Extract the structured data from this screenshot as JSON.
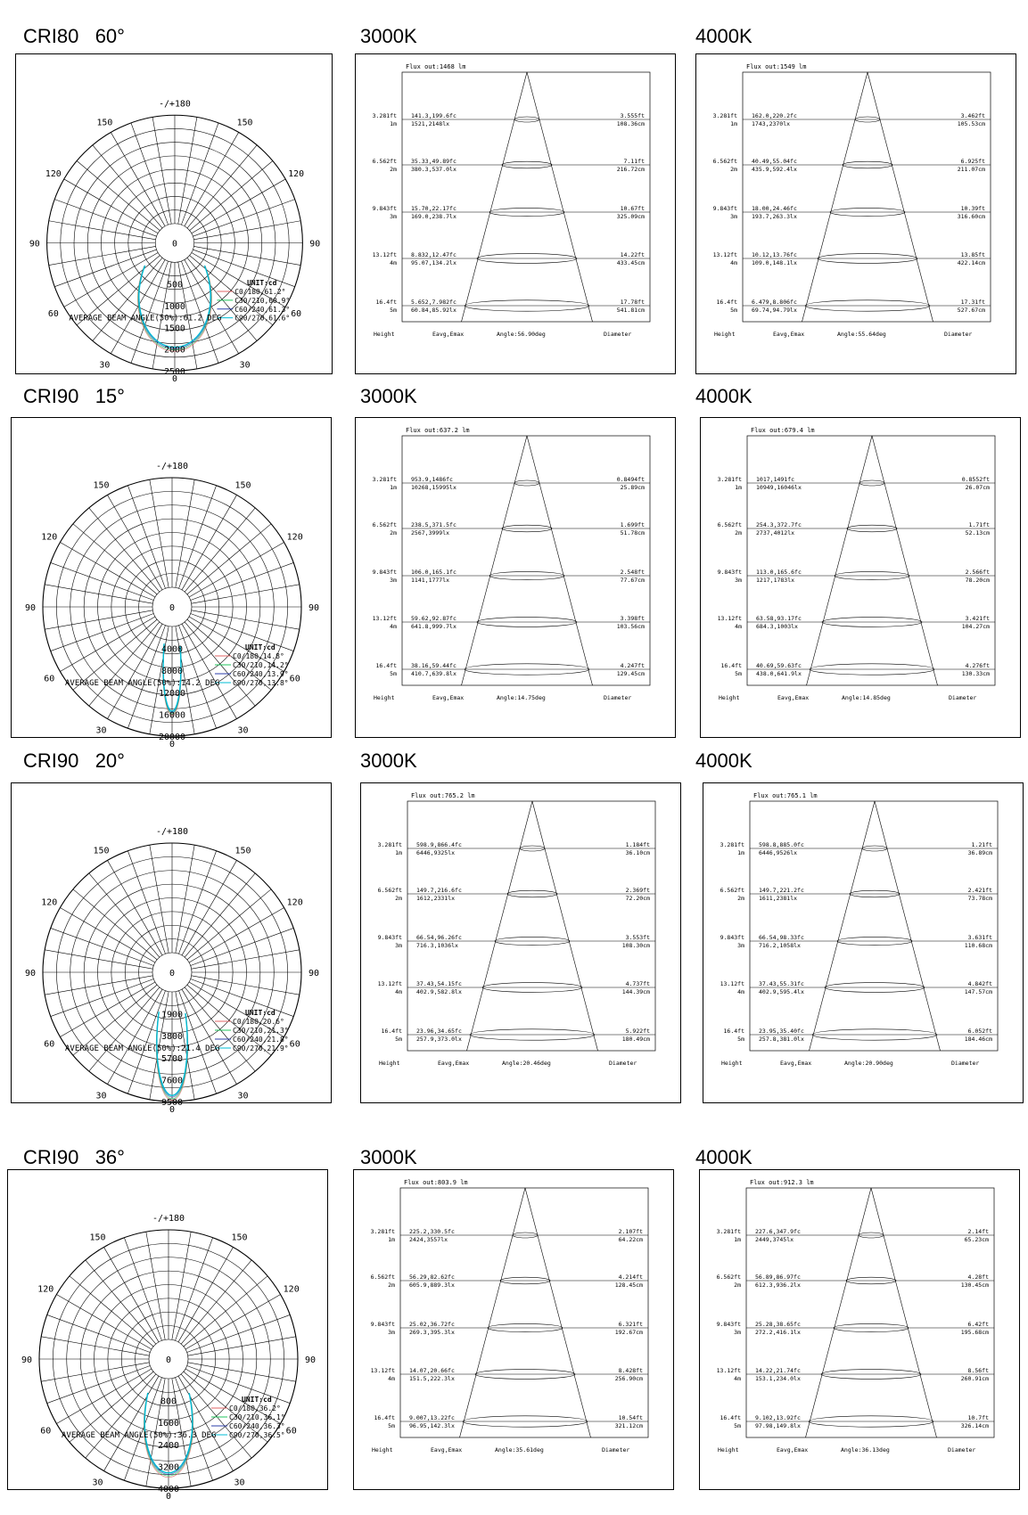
{
  "rows": [
    {
      "titles": [
        "CRI80   60°",
        "3000K",
        "4000K"
      ],
      "polar": {
        "type": "polar",
        "rings": [
          500,
          1000,
          1500,
          2000,
          2500
        ],
        "rmax": 2500,
        "inner_labels": [
          "0",
          "500",
          "1000",
          "1500",
          "2000",
          "2500"
        ],
        "unit": "UNIT:cd",
        "legend": [
          "C0/180,61.2°",
          "C30/210,60.9°",
          "C60/240,61.3°",
          "C90/270,61.6°"
        ],
        "beam_angle_label": "AVERAGE BEAM ANGLE(50%):61.2 DEG",
        "beam_angle": 61.2,
        "peak": 2050
      },
      "cones": [
        {
          "type": "table",
          "flux": "Flux out:1468 lm",
          "angle": "Angle:56.90deg",
          "rows": [
            {
              "ft": "3.281ft",
              "m": "1m",
              "fc": "141.3,199.6fc",
              "lx": "1521,2148lx",
              "dft": "3.555ft",
              "dcm": "108.36cm"
            },
            {
              "ft": "6.562ft",
              "m": "2m",
              "fc": "35.33,49.89fc",
              "lx": "380.3,537.0lx",
              "dft": "7.11ft",
              "dcm": "216.72cm"
            },
            {
              "ft": "9.843ft",
              "m": "3m",
              "fc": "15.70,22.17fc",
              "lx": "169.0,238.7lx",
              "dft": "10.67ft",
              "dcm": "325.09cm"
            },
            {
              "ft": "13.12ft",
              "m": "4m",
              "fc": "8.832,12.47fc",
              "lx": "95.07,134.2lx",
              "dft": "14.22ft",
              "dcm": "433.45cm"
            },
            {
              "ft": "16.4ft",
              "m": "5m",
              "fc": "5.652,7.982fc",
              "lx": "60.84,85.92lx",
              "dft": "17.78ft",
              "dcm": "541.81cm"
            }
          ]
        },
        {
          "type": "table",
          "flux": "Flux out:1549 lm",
          "angle": "Angle:55.64deg",
          "rows": [
            {
              "ft": "3.281ft",
              "m": "1m",
              "fc": "162.0,220.2fc",
              "lx": "1743,2370lx",
              "dft": "3.462ft",
              "dcm": "105.53cm"
            },
            {
              "ft": "6.562ft",
              "m": "2m",
              "fc": "40.49,55.04fc",
              "lx": "435.9,592.4lx",
              "dft": "6.925ft",
              "dcm": "211.07cm"
            },
            {
              "ft": "9.843ft",
              "m": "3m",
              "fc": "18.00,24.46fc",
              "lx": "193.7,263.3lx",
              "dft": "10.39ft",
              "dcm": "316.60cm"
            },
            {
              "ft": "13.12ft",
              "m": "4m",
              "fc": "10.12,13.76fc",
              "lx": "109.0,148.1lx",
              "dft": "13.85ft",
              "dcm": "422.14cm"
            },
            {
              "ft": "16.4ft",
              "m": "5m",
              "fc": "6.479,8.806fc",
              "lx": "69.74,94.79lx",
              "dft": "17.31ft",
              "dcm": "527.67cm"
            }
          ]
        }
      ]
    },
    {
      "titles": [
        "CRI90   15°",
        "3000K",
        "4000K"
      ],
      "polar": {
        "type": "polar",
        "rings": [
          4000,
          8000,
          12000,
          16000,
          20000
        ],
        "rmax": 20000,
        "inner_labels": [
          "0",
          "4000",
          "8000",
          "12000",
          "16000",
          "20000"
        ],
        "unit": "UNIT:cd",
        "legend": [
          "C0/180,14.8°",
          "C30/210,14.2°",
          "C60/240,13.9°",
          "C90/270,13.8°"
        ],
        "beam_angle_label": "AVERAGE BEAM ANGLE(50%):14.2 DEG",
        "beam_angle": 14.2,
        "peak": 16200
      },
      "cones": [
        {
          "type": "table",
          "flux": "Flux out:637.2 lm",
          "angle": "Angle:14.75deg",
          "rows": [
            {
              "ft": "3.281ft",
              "m": "1m",
              "fc": "953.9,1486fc",
              "lx": "10268,15995lx",
              "dft": "0.8494ft",
              "dcm": "25.89cm"
            },
            {
              "ft": "6.562ft",
              "m": "2m",
              "fc": "238.5,371.5fc",
              "lx": "2567,3999lx",
              "dft": "1.699ft",
              "dcm": "51.78cm"
            },
            {
              "ft": "9.843ft",
              "m": "3m",
              "fc": "106.0,165.1fc",
              "lx": "1141,1777lx",
              "dft": "2.548ft",
              "dcm": "77.67cm"
            },
            {
              "ft": "13.12ft",
              "m": "4m",
              "fc": "59.62,92.87fc",
              "lx": "641.8,999.7lx",
              "dft": "3.398ft",
              "dcm": "103.56cm"
            },
            {
              "ft": "16.4ft",
              "m": "5m",
              "fc": "38.16,59.44fc",
              "lx": "410.7,639.8lx",
              "dft": "4.247ft",
              "dcm": "129.45cm"
            }
          ]
        },
        {
          "type": "table",
          "flux": "Flux out:679.4 lm",
          "angle": "Angle:14.85deg",
          "rows": [
            {
              "ft": "3.281ft",
              "m": "1m",
              "fc": "1017,1491fc",
              "lx": "10949,16046lx",
              "dft": "0.8552ft",
              "dcm": "26.07cm"
            },
            {
              "ft": "6.562ft",
              "m": "2m",
              "fc": "254.3,372.7fc",
              "lx": "2737,4012lx",
              "dft": "1.71ft",
              "dcm": "52.13cm"
            },
            {
              "ft": "9.843ft",
              "m": "3m",
              "fc": "113.0,165.6fc",
              "lx": "1217,1783lx",
              "dft": "2.566ft",
              "dcm": "78.20cm"
            },
            {
              "ft": "13.12ft",
              "m": "4m",
              "fc": "63.58,93.17fc",
              "lx": "684.3,1003lx",
              "dft": "3.421ft",
              "dcm": "104.27cm"
            },
            {
              "ft": "16.4ft",
              "m": "5m",
              "fc": "40.69,59.63fc",
              "lx": "438.0,641.9lx",
              "dft": "4.276ft",
              "dcm": "130.33cm"
            }
          ]
        }
      ]
    },
    {
      "titles": [
        "CRI90   20°",
        "3000K",
        "4000K"
      ],
      "polar": {
        "type": "polar",
        "rings": [
          1900,
          3800,
          5700,
          7600,
          9500
        ],
        "rmax": 9500,
        "inner_labels": [
          "0",
          "1900",
          "3800",
          "5700",
          "7600",
          "9500"
        ],
        "unit": "UNIT:cd",
        "legend": [
          "C0/180,20.6°",
          "C30/210,21.3°",
          "C60/240,21.8°",
          "C90/270,21.9°"
        ],
        "beam_angle_label": "AVERAGE BEAM ANGLE(50%):21.4 DEG",
        "beam_angle": 21.4,
        "peak": 9400
      },
      "cones": [
        {
          "type": "table",
          "flux": "Flux out:765.2 lm",
          "angle": "Angle:20.46deg",
          "rows": [
            {
              "ft": "3.281ft",
              "m": "1m",
              "fc": "598.9,866.4fc",
              "lx": "6446,9325lx",
              "dft": "1.184ft",
              "dcm": "36.10cm"
            },
            {
              "ft": "6.562ft",
              "m": "2m",
              "fc": "149.7,216.6fc",
              "lx": "1612,2331lx",
              "dft": "2.369ft",
              "dcm": "72.20cm"
            },
            {
              "ft": "9.843ft",
              "m": "3m",
              "fc": "66.54,96.26fc",
              "lx": "716.3,1036lx",
              "dft": "3.553ft",
              "dcm": "108.30cm"
            },
            {
              "ft": "13.12ft",
              "m": "4m",
              "fc": "37.43,54.15fc",
              "lx": "402.9,582.8lx",
              "dft": "4.737ft",
              "dcm": "144.39cm"
            },
            {
              "ft": "16.4ft",
              "m": "5m",
              "fc": "23.96,34.65fc",
              "lx": "257.9,373.0lx",
              "dft": "5.922ft",
              "dcm": "180.49cm"
            }
          ]
        },
        {
          "type": "table",
          "flux": "Flux out:765.1 lm",
          "angle": "Angle:20.90deg",
          "rows": [
            {
              "ft": "3.281ft",
              "m": "1m",
              "fc": "598.8,885.0fc",
              "lx": "6446,9526lx",
              "dft": "1.21ft",
              "dcm": "36.89cm"
            },
            {
              "ft": "6.562ft",
              "m": "2m",
              "fc": "149.7,221.2fc",
              "lx": "1611,2381lx",
              "dft": "2.421ft",
              "dcm": "73.78cm"
            },
            {
              "ft": "9.843ft",
              "m": "3m",
              "fc": "66.54,98.33fc",
              "lx": "716.2,1058lx",
              "dft": "3.631ft",
              "dcm": "110.68cm"
            },
            {
              "ft": "13.12ft",
              "m": "4m",
              "fc": "37.43,55.31fc",
              "lx": "402.9,595.4lx",
              "dft": "4.842ft",
              "dcm": "147.57cm"
            },
            {
              "ft": "16.4ft",
              "m": "5m",
              "fc": "23.95,35.40fc",
              "lx": "257.8,381.0lx",
              "dft": "6.052ft",
              "dcm": "184.46cm"
            }
          ]
        }
      ]
    },
    {
      "titles": [
        "CRI90   36°",
        "3000K",
        "4000K"
      ],
      "polar": {
        "type": "polar",
        "rings": [
          800,
          1600,
          2400,
          3200,
          4000
        ],
        "rmax": 4000,
        "inner_labels": [
          "0",
          "800",
          "1600",
          "2400",
          "3200",
          "4000"
        ],
        "unit": "UNIT:cd",
        "legend": [
          "C0/180,36.2°",
          "C30/210,36.1°",
          "C60/240,36.3°",
          "C90/270,36.5°"
        ],
        "beam_angle_label": "AVERAGE BEAM ANGLE(50%):36.3 DEG",
        "beam_angle": 36.3,
        "peak": 3600
      },
      "cones": [
        {
          "type": "table",
          "flux": "Flux out:803.9 lm",
          "angle": "Angle:35.61deg",
          "rows": [
            {
              "ft": "3.281ft",
              "m": "1m",
              "fc": "225.2,330.5fc",
              "lx": "2424,3557lx",
              "dft": "2.107ft",
              "dcm": "64.22cm"
            },
            {
              "ft": "6.562ft",
              "m": "2m",
              "fc": "56.29,82.62fc",
              "lx": "605.9,889.3lx",
              "dft": "4.214ft",
              "dcm": "128.45cm"
            },
            {
              "ft": "9.843ft",
              "m": "3m",
              "fc": "25.02,36.72fc",
              "lx": "269.3,395.3lx",
              "dft": "6.321ft",
              "dcm": "192.67cm"
            },
            {
              "ft": "13.12ft",
              "m": "4m",
              "fc": "14.07,20.66fc",
              "lx": "151.5,222.3lx",
              "dft": "8.428ft",
              "dcm": "256.90cm"
            },
            {
              "ft": "16.4ft",
              "m": "5m",
              "fc": "9.007,13.22fc",
              "lx": "96.95,142.3lx",
              "dft": "10.54ft",
              "dcm": "321.12cm"
            }
          ]
        },
        {
          "type": "table",
          "flux": "Flux out:912.3 lm",
          "angle": "Angle:36.13deg",
          "rows": [
            {
              "ft": "3.281ft",
              "m": "1m",
              "fc": "227.6,347.9fc",
              "lx": "2449,3745lx",
              "dft": "2.14ft",
              "dcm": "65.23cm"
            },
            {
              "ft": "6.562ft",
              "m": "2m",
              "fc": "56.89,86.97fc",
              "lx": "612.3,936.2lx",
              "dft": "4.28ft",
              "dcm": "130.45cm"
            },
            {
              "ft": "9.843ft",
              "m": "3m",
              "fc": "25.28,38.65fc",
              "lx": "272.2,416.1lx",
              "dft": "6.42ft",
              "dcm": "195.68cm"
            },
            {
              "ft": "13.12ft",
              "m": "4m",
              "fc": "14.22,21.74fc",
              "lx": "153.1,234.0lx",
              "dft": "8.56ft",
              "dcm": "260.91cm"
            },
            {
              "ft": "16.4ft",
              "m": "5m",
              "fc": "9.102,13.92fc",
              "lx": "97.98,149.8lx",
              "dft": "10.7ft",
              "dcm": "326.14cm"
            }
          ]
        }
      ]
    }
  ],
  "polar_common": {
    "angle_labels": [
      "-/+180",
      "150",
      "120",
      "90",
      "60",
      "30",
      "0",
      "30",
      "60",
      "90",
      "120",
      "150"
    ],
    "legend_colors": [
      "#e06666",
      "#22c55e",
      "#2b3ea8",
      "#00bcd4"
    ],
    "curve_color": "#00bcd4"
  },
  "cone_common": {
    "col_height": "Height",
    "col_eavg": "Eavg,Emax",
    "col_diameter": "Diameter"
  }
}
